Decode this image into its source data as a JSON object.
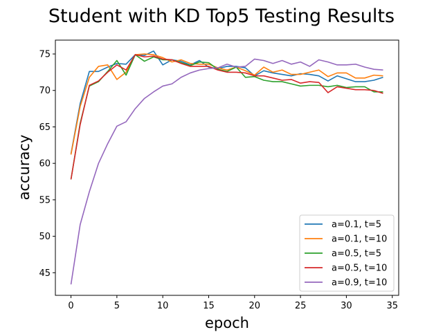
{
  "chart_data": {
    "type": "line",
    "title": "Student with KD Top5 Testing Results",
    "xlabel": "epoch",
    "ylabel": "accuracy",
    "xlim": [
      -1.7,
      35.7
    ],
    "ylim": [
      41.9,
      76.9
    ],
    "xticks": [
      0,
      5,
      10,
      15,
      20,
      25,
      30,
      35
    ],
    "yticks": [
      45,
      50,
      55,
      60,
      65,
      70,
      75
    ],
    "grid": false,
    "legend_position": "lower-right",
    "x": [
      0,
      1,
      2,
      3,
      4,
      5,
      6,
      7,
      8,
      9,
      10,
      11,
      12,
      13,
      14,
      15,
      16,
      17,
      18,
      19,
      20,
      21,
      22,
      23,
      24,
      25,
      26,
      27,
      28,
      29,
      30,
      31,
      32,
      33,
      34
    ],
    "series": [
      {
        "name": "a=0.1, t=5",
        "color": "#1f77b4",
        "values": [
          61.3,
          68.2,
          72.6,
          72.6,
          73.2,
          73.7,
          73.6,
          74.9,
          74.8,
          75.4,
          73.5,
          74.2,
          74.0,
          73.5,
          74.1,
          73.2,
          73.0,
          73.3,
          73.3,
          73.1,
          72.0,
          72.7,
          72.4,
          72.2,
          72.0,
          72.3,
          72.2,
          72.0,
          71.3,
          72.0,
          71.6,
          71.2,
          71.2,
          71.4,
          71.8
        ]
      },
      {
        "name": "a=0.1, t=10",
        "color": "#ff7f0e",
        "values": [
          61.2,
          67.8,
          71.8,
          73.3,
          73.5,
          71.5,
          72.5,
          74.9,
          75.0,
          74.9,
          74.5,
          73.9,
          74.2,
          73.7,
          73.6,
          73.6,
          73.1,
          72.8,
          73.2,
          72.7,
          72.1,
          73.2,
          72.5,
          72.8,
          72.2,
          72.2,
          72.5,
          72.8,
          71.9,
          72.4,
          72.4,
          71.7,
          71.7,
          72.1,
          72.0
        ]
      },
      {
        "name": "a=0.5, t=5",
        "color": "#2ca02c",
        "values": [
          57.8,
          65.5,
          70.6,
          71.2,
          72.6,
          74.1,
          72.1,
          74.9,
          74.0,
          74.6,
          74.2,
          74.2,
          73.8,
          73.4,
          73.9,
          73.8,
          72.9,
          72.6,
          73.2,
          71.8,
          71.9,
          71.4,
          71.2,
          71.2,
          70.9,
          70.6,
          70.7,
          70.7,
          70.5,
          70.7,
          70.4,
          70.5,
          70.5,
          69.8,
          69.8
        ]
      },
      {
        "name": "a=0.5, t=10",
        "color": "#d62728",
        "values": [
          57.8,
          65.3,
          70.7,
          71.3,
          72.5,
          73.5,
          72.8,
          74.9,
          74.6,
          74.7,
          74.3,
          74.2,
          73.7,
          73.3,
          73.3,
          73.3,
          72.8,
          72.5,
          72.5,
          72.4,
          72.0,
          72.0,
          71.7,
          71.4,
          71.5,
          71.0,
          71.2,
          71.1,
          69.7,
          70.5,
          70.3,
          70.1,
          70.1,
          70.0,
          69.6
        ]
      },
      {
        "name": "a=0.9, t=10",
        "color": "#9467bd",
        "values": [
          43.4,
          51.6,
          56.1,
          60.0,
          62.7,
          65.1,
          65.7,
          67.5,
          68.9,
          69.8,
          70.6,
          70.9,
          71.8,
          72.4,
          72.8,
          73.0,
          73.1,
          73.6,
          73.2,
          73.3,
          74.3,
          74.1,
          73.7,
          74.1,
          73.6,
          73.9,
          73.3,
          74.2,
          73.9,
          73.5,
          73.5,
          73.6,
          73.2,
          72.9,
          72.8
        ]
      }
    ]
  }
}
